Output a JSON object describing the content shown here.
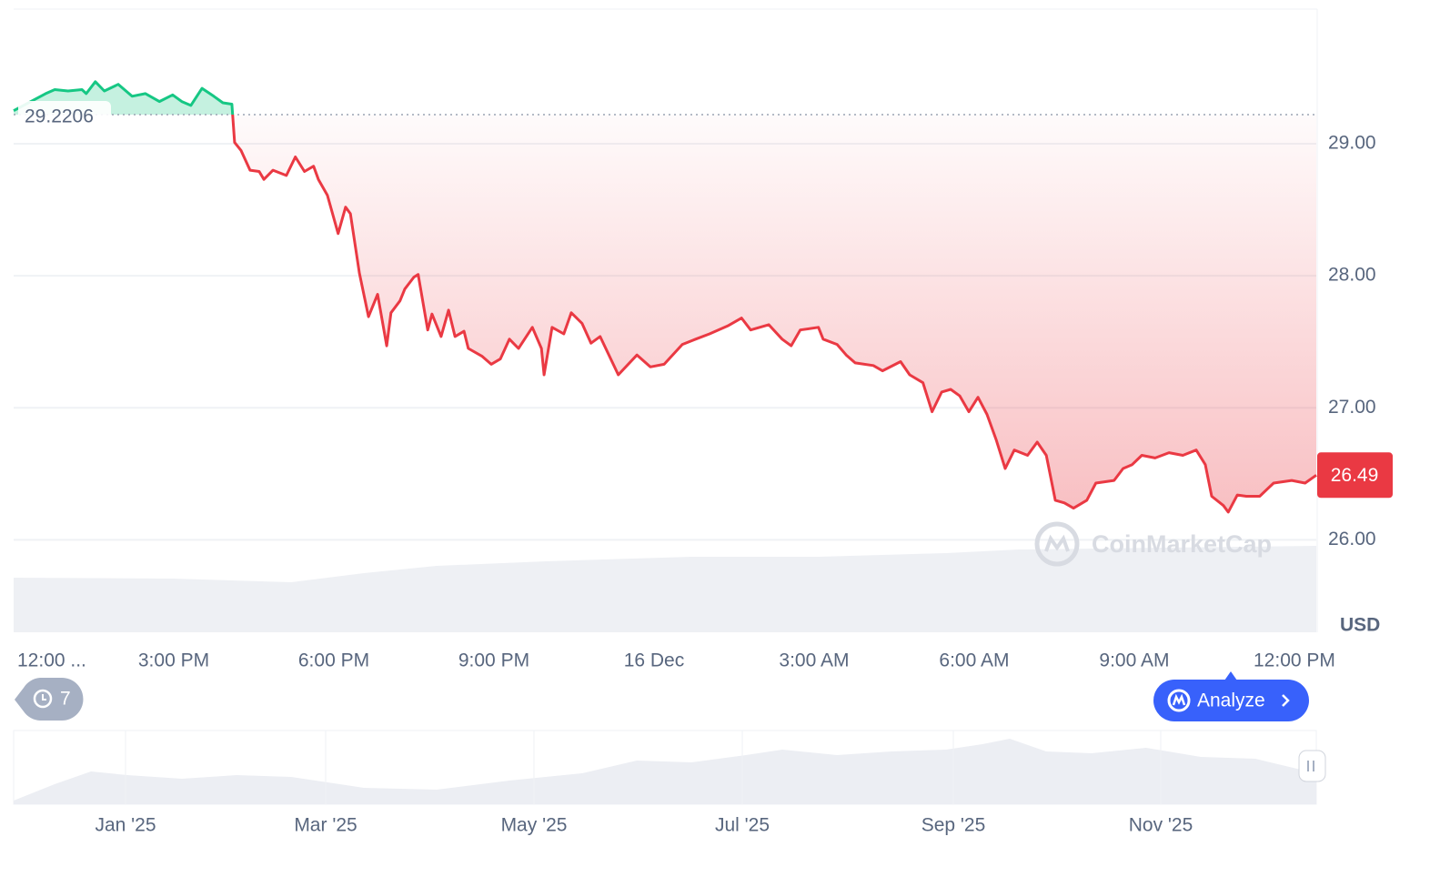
{
  "chart_data": {
    "type": "line",
    "x": [
      0.0,
      0.6,
      0.77,
      1.02,
      1.28,
      1.36,
      1.53,
      1.7,
      1.96,
      2.22,
      2.47,
      2.73,
      2.98,
      3.15,
      3.32,
      3.53,
      3.75,
      3.92,
      4.09,
      4.14,
      4.26,
      4.43,
      4.6,
      4.69,
      4.86,
      5.11,
      5.28,
      5.45,
      5.62,
      5.71,
      5.88,
      6.08,
      6.22,
      6.31,
      6.48,
      6.65,
      6.82,
      6.99,
      7.07,
      7.24,
      7.33,
      7.5,
      7.58,
      7.76,
      7.84,
      8.01,
      8.15,
      8.27,
      8.44,
      8.52,
      8.78,
      8.95,
      9.12,
      9.29,
      9.46,
      9.72,
      9.89,
      9.94,
      10.09,
      10.31,
      10.45,
      10.65,
      10.82,
      10.99,
      11.33,
      11.68,
      11.93,
      12.19,
      12.53,
      12.78,
      13.04,
      13.38,
      13.64,
      13.81,
      14.15,
      14.4,
      14.57,
      14.74,
      15.08,
      15.17,
      15.43,
      15.6,
      15.77,
      16.11,
      16.28,
      16.62,
      16.79,
      17.04,
      17.21,
      17.39,
      17.56,
      17.73,
      17.9,
      18.07,
      18.24,
      18.41,
      18.58,
      18.75,
      19.0,
      19.18,
      19.35,
      19.52,
      19.69,
      19.86,
      20.11,
      20.28,
      20.62,
      20.79,
      20.96,
      21.14,
      21.39,
      21.65,
      21.91,
      22.16,
      22.33,
      22.45,
      22.67,
      22.76,
      22.93,
      23.1,
      23.35,
      23.61,
      23.95,
      24.2,
      24.41
    ],
    "series": [
      {
        "color": "#ea3943",
        "up_color": "#16c784",
        "values": [
          29.25,
          29.38,
          29.41,
          29.4,
          29.41,
          29.38,
          29.47,
          29.4,
          29.45,
          29.36,
          29.38,
          29.32,
          29.37,
          29.32,
          29.29,
          29.42,
          29.36,
          29.31,
          29.3,
          29.01,
          28.95,
          28.8,
          28.79,
          28.73,
          28.8,
          28.76,
          28.9,
          28.79,
          28.83,
          28.73,
          28.61,
          28.32,
          28.52,
          28.47,
          28.02,
          27.69,
          27.86,
          27.47,
          27.72,
          27.81,
          27.9,
          27.99,
          28.01,
          27.59,
          27.71,
          27.54,
          27.74,
          27.54,
          27.58,
          27.45,
          27.39,
          27.33,
          27.37,
          27.52,
          27.45,
          27.61,
          27.45,
          27.25,
          27.61,
          27.56,
          27.72,
          27.64,
          27.49,
          27.54,
          27.25,
          27.4,
          27.31,
          27.33,
          27.48,
          27.52,
          27.56,
          27.62,
          27.68,
          27.59,
          27.63,
          27.52,
          27.47,
          27.59,
          27.61,
          27.52,
          27.48,
          27.4,
          27.34,
          27.32,
          27.28,
          27.35,
          27.25,
          27.19,
          26.97,
          27.12,
          27.14,
          27.09,
          26.97,
          27.08,
          26.95,
          26.76,
          26.54,
          26.68,
          26.64,
          26.74,
          26.64,
          26.3,
          26.28,
          26.24,
          26.3,
          26.43,
          26.45,
          26.54,
          26.57,
          26.64,
          26.62,
          26.66,
          26.64,
          26.68,
          26.57,
          26.33,
          26.26,
          26.21,
          26.34,
          26.33,
          26.33,
          26.43,
          26.45,
          26.43,
          26.49
        ]
      }
    ],
    "xlim": [
      0,
      24.41
    ],
    "xticks": [
      {
        "value": 0,
        "label": "12:00 ..."
      },
      {
        "value": 3,
        "label": "3:00 PM"
      },
      {
        "value": 6,
        "label": "6:00 PM"
      },
      {
        "value": 9,
        "label": "9:00 PM"
      },
      {
        "value": 12,
        "label": "16 Dec"
      },
      {
        "value": 15,
        "label": "3:00 AM"
      },
      {
        "value": 18,
        "label": "6:00 AM"
      },
      {
        "value": 21,
        "label": "9:00 AM"
      },
      {
        "value": 24,
        "label": "12:00 PM"
      }
    ],
    "ylim": [
      25.3,
      30.02
    ],
    "yticks": [
      {
        "value": 26,
        "label": "26.00"
      },
      {
        "value": 27,
        "label": "27.00"
      },
      {
        "value": 28,
        "label": "28.00"
      },
      {
        "value": 29,
        "label": "29.00"
      }
    ],
    "reference_value": 29.2206,
    "current_price": 26.49,
    "unit": "USD",
    "grid": true,
    "watermark": "CoinMarketCap",
    "navigator_labels": [
      "Jan '25",
      "Mar '25",
      "May '25",
      "Jul '25",
      "Sep '25",
      "Nov '25"
    ]
  },
  "ui": {
    "history_count": 7,
    "analyze_button": "Analyze"
  }
}
